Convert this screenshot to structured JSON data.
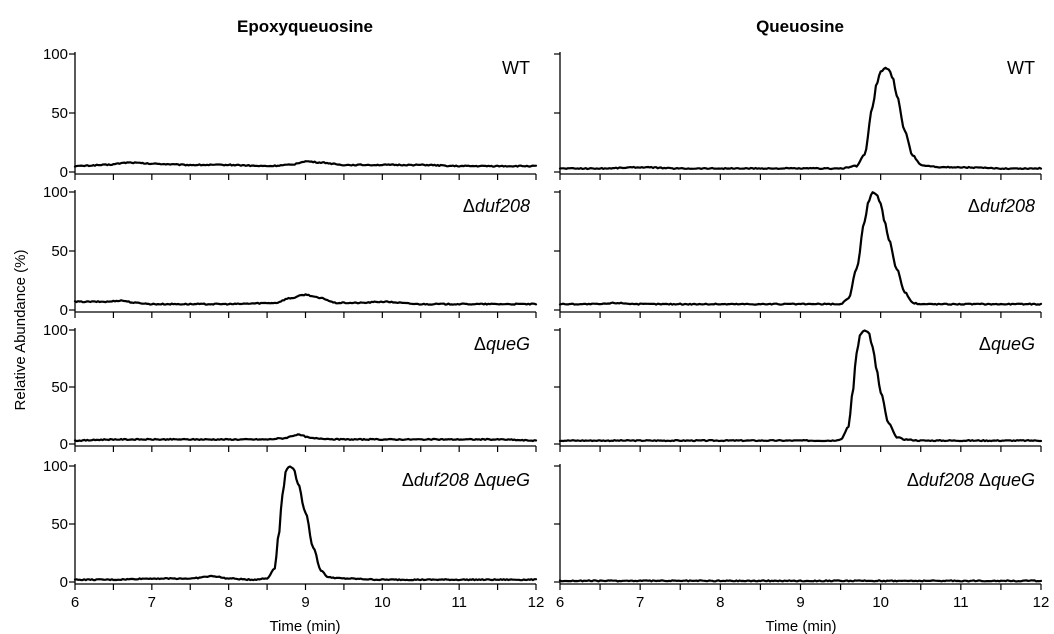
{
  "figure": {
    "y_axis_label": "Relative Abundance (%)",
    "x_axis_label": "Time (min)"
  },
  "chart_data": [
    {
      "type": "line",
      "title": "Epoxyqueuosine",
      "strain": "WT",
      "panel": "left-1",
      "xlim": [
        6,
        12
      ],
      "ylim": [
        0,
        100
      ],
      "yticks": [
        0,
        50,
        100
      ],
      "series": [
        {
          "x": [
            6.0,
            6.4,
            6.7,
            7.0,
            7.5,
            8.0,
            8.5,
            8.8,
            9.0,
            9.2,
            9.5,
            10.0,
            10.5,
            11.0,
            11.5,
            12.0
          ],
          "y": [
            5,
            6,
            8,
            7,
            6,
            6,
            5,
            6,
            9,
            8,
            6,
            6,
            6,
            5,
            5,
            5
          ]
        }
      ]
    },
    {
      "type": "line",
      "title": "",
      "strain": "Δduf208",
      "panel": "left-2",
      "xlim": [
        6,
        12
      ],
      "ylim": [
        0,
        100
      ],
      "yticks": [
        0,
        50,
        100
      ],
      "series": [
        {
          "x": [
            6.0,
            6.4,
            6.6,
            6.8,
            7.0,
            7.5,
            8.0,
            8.6,
            8.8,
            9.0,
            9.2,
            9.4,
            9.7,
            10.0,
            10.5,
            11.0,
            11.5,
            12.0
          ],
          "y": [
            7,
            7,
            8,
            6,
            5,
            5,
            5,
            6,
            10,
            13,
            10,
            6,
            6,
            7,
            5,
            5,
            5,
            5
          ]
        }
      ]
    },
    {
      "type": "line",
      "title": "",
      "strain": "ΔqueG",
      "panel": "left-3",
      "xlim": [
        6,
        12
      ],
      "ylim": [
        0,
        100
      ],
      "yticks": [
        0,
        50,
        100
      ],
      "series": [
        {
          "x": [
            6.0,
            6.5,
            7.0,
            7.5,
            8.0,
            8.5,
            8.7,
            8.9,
            9.1,
            9.5,
            10.0,
            10.5,
            11.0,
            11.5,
            12.0
          ],
          "y": [
            3,
            4,
            4,
            4,
            4,
            4,
            5,
            8,
            5,
            4,
            4,
            4,
            4,
            4,
            3
          ]
        }
      ]
    },
    {
      "type": "line",
      "title": "",
      "strain": "Δduf208 ΔqueG",
      "panel": "left-4",
      "xlim": [
        6,
        12
      ],
      "ylim": [
        0,
        100
      ],
      "yticks": [
        0,
        50,
        100
      ],
      "series": [
        {
          "x": [
            6.0,
            6.5,
            7.0,
            7.5,
            7.8,
            8.0,
            8.3,
            8.5,
            8.6,
            8.65,
            8.7,
            8.75,
            8.8,
            8.85,
            8.9,
            9.0,
            9.1,
            9.2,
            9.3,
            9.5,
            10.0,
            11.0,
            12.0
          ],
          "y": [
            2,
            2,
            3,
            3,
            5,
            3,
            2,
            3,
            12,
            40,
            75,
            97,
            100,
            97,
            85,
            60,
            30,
            10,
            4,
            3,
            2,
            2,
            2
          ]
        }
      ]
    },
    {
      "type": "line",
      "title": "Queuosine",
      "strain": "WT",
      "panel": "right-1",
      "xlim": [
        6,
        12
      ],
      "ylim": [
        0,
        100
      ],
      "yticks": [
        0,
        50,
        100
      ],
      "series": [
        {
          "x": [
            6.0,
            6.5,
            7.0,
            7.5,
            8.0,
            8.5,
            9.0,
            9.5,
            9.7,
            9.8,
            9.9,
            9.95,
            10.0,
            10.05,
            10.1,
            10.15,
            10.2,
            10.3,
            10.4,
            10.5,
            10.6,
            10.8,
            11.0,
            11.5,
            12.0
          ],
          "y": [
            3,
            3,
            4,
            3,
            3,
            3,
            3,
            3,
            5,
            15,
            55,
            75,
            85,
            88,
            87,
            80,
            65,
            35,
            14,
            6,
            5,
            4,
            4,
            3,
            3
          ]
        }
      ]
    },
    {
      "type": "line",
      "title": "",
      "strain": "Δduf208",
      "panel": "right-2",
      "xlim": [
        6,
        12
      ],
      "ylim": [
        0,
        100
      ],
      "yticks": [
        0,
        50,
        100
      ],
      "series": [
        {
          "x": [
            6.0,
            6.5,
            6.7,
            7.0,
            7.5,
            8.0,
            8.5,
            9.0,
            9.5,
            9.6,
            9.7,
            9.8,
            9.85,
            9.9,
            9.95,
            10.0,
            10.05,
            10.1,
            10.2,
            10.3,
            10.4,
            10.5,
            10.7,
            11.0,
            11.5,
            12.0
          ],
          "y": [
            5,
            5,
            6,
            5,
            5,
            5,
            5,
            5,
            5,
            10,
            35,
            75,
            92,
            100,
            98,
            90,
            75,
            60,
            35,
            15,
            6,
            5,
            5,
            5,
            5,
            5
          ]
        }
      ]
    },
    {
      "type": "line",
      "title": "",
      "strain": "ΔqueG",
      "panel": "right-3",
      "xlim": [
        6,
        12
      ],
      "ylim": [
        0,
        100
      ],
      "yticks": [
        0,
        50,
        100
      ],
      "series": [
        {
          "x": [
            6.0,
            6.5,
            7.0,
            7.5,
            8.0,
            8.5,
            9.0,
            9.4,
            9.5,
            9.6,
            9.65,
            9.7,
            9.75,
            9.8,
            9.85,
            9.9,
            9.95,
            10.0,
            10.1,
            10.2,
            10.3,
            10.5,
            11.0,
            11.5,
            12.0
          ],
          "y": [
            3,
            3,
            3,
            3,
            3,
            3,
            3,
            3,
            4,
            15,
            45,
            80,
            97,
            100,
            98,
            85,
            65,
            45,
            18,
            6,
            4,
            3,
            3,
            3,
            3
          ]
        }
      ]
    },
    {
      "type": "line",
      "title": "",
      "strain": "Δduf208 ΔqueG",
      "panel": "right-4",
      "xlim": [
        6,
        12
      ],
      "ylim": [
        0,
        100
      ],
      "yticks": [
        0,
        50,
        100
      ],
      "series": [
        {
          "x": [
            6.0,
            7.0,
            8.0,
            9.0,
            10.0,
            11.0,
            12.0
          ],
          "y": [
            1,
            1,
            1,
            1,
            1,
            1,
            1
          ]
        }
      ]
    }
  ]
}
